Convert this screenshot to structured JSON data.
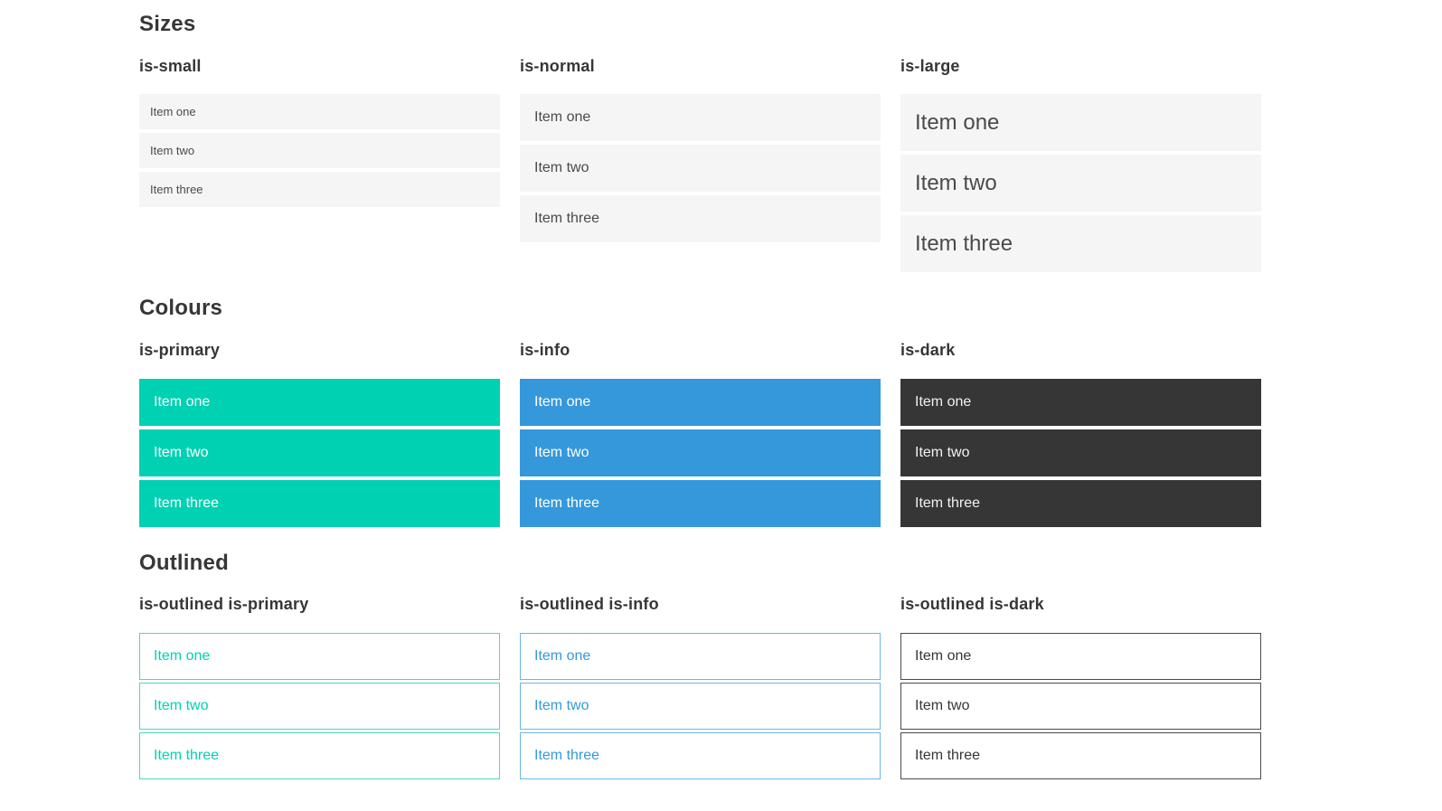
{
  "page": {
    "background": "#ffffff"
  },
  "colors": {
    "heading": "#363636",
    "item_bg": "#f5f5f5",
    "item_text": "#4a4a4a",
    "primary": "#00d1b2",
    "info": "#3498db",
    "dark": "#363636",
    "outlined_primary_border": "#4dd8c4",
    "outlined_info_border": "#6cb6e8",
    "outlined_dark_border": "#4a4a4a"
  },
  "sections": [
    {
      "title": "Sizes",
      "columns": [
        {
          "heading": "is-small",
          "items": [
            "Item one",
            "Item two",
            "Item three"
          ]
        },
        {
          "heading": "is-normal",
          "items": [
            "Item one",
            "Item two",
            "Item three"
          ]
        },
        {
          "heading": "is-large",
          "items": [
            "Item one",
            "Item two",
            "Item three"
          ]
        }
      ]
    },
    {
      "title": "Colours",
      "columns": [
        {
          "heading": "is-primary",
          "items": [
            "Item one",
            "Item two",
            "Item three"
          ]
        },
        {
          "heading": "is-info",
          "items": [
            "Item one",
            "Item two",
            "Item three"
          ]
        },
        {
          "heading": "is-dark",
          "items": [
            "Item one",
            "Item two",
            "Item three"
          ]
        }
      ]
    },
    {
      "title": "Outlined",
      "columns": [
        {
          "heading": "is-outlined is-primary",
          "items": [
            "Item one",
            "Item two",
            "Item three"
          ]
        },
        {
          "heading": "is-outlined is-info",
          "items": [
            "Item one",
            "Item two",
            "Item three"
          ]
        },
        {
          "heading": "is-outlined is-dark",
          "items": [
            "Item one",
            "Item two",
            "Item three"
          ]
        }
      ]
    }
  ]
}
